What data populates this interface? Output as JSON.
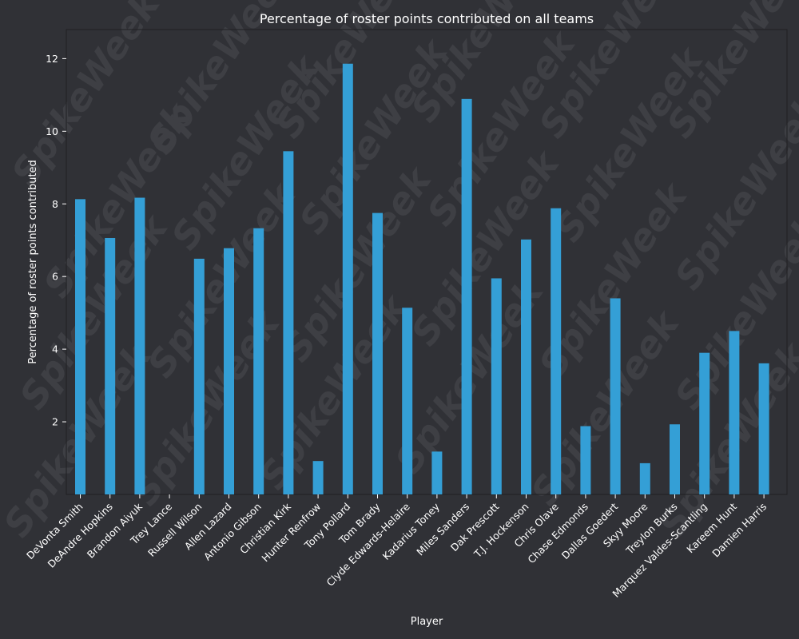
{
  "chart_data": {
    "type": "bar",
    "title": "Percentage of roster points contributed on all teams",
    "xlabel": "Player",
    "ylabel": "Percentage of roster points contributed",
    "watermark": "SpikeWeek",
    "bar_color": "#349fd6",
    "background_color": "#303136",
    "text_color": "#ffffff",
    "ylim": [
      0,
      12.8
    ],
    "yticks": [
      2,
      4,
      6,
      8,
      10,
      12
    ],
    "grid": false,
    "legend": "none",
    "categories": [
      "DeVonta Smith",
      "DeAndre Hopkins",
      "Brandon Aiyuk",
      "Trey Lance",
      "Russell Wilson",
      "Allen Lazard",
      "Antonio Gibson",
      "Christian Kirk",
      "Hunter Renfrow",
      "Tony Pollard",
      "Tom Brady",
      "Clyde Edwards-Helaire",
      "Kadarius Toney",
      "Miles Sanders",
      "Dak Prescott",
      "T.J. Hockenson",
      "Chris Olave",
      "Chase Edmonds",
      "Dallas Goedert",
      "Skyy Moore",
      "Treylon Burks",
      "Marquez Valdes-Scantling",
      "Kareem Hunt",
      "Damien Harris"
    ],
    "values": [
      8.13,
      7.06,
      8.17,
      0,
      6.49,
      6.78,
      7.33,
      9.45,
      0.92,
      11.86,
      7.75,
      5.14,
      1.18,
      10.89,
      5.95,
      7.02,
      7.88,
      1.88,
      5.4,
      0.86,
      1.93,
      3.9,
      4.5,
      3.61
    ]
  }
}
